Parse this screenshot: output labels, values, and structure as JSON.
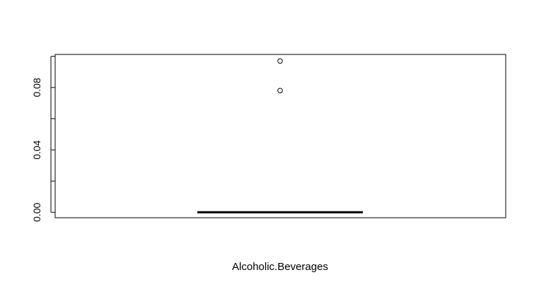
{
  "chart_data": {
    "type": "box",
    "xlabel": "Alcoholic.Beverages",
    "ylabel": "",
    "ylim": [
      -0.0035,
      0.1012
    ],
    "yticks": [
      "0.00",
      "0.04",
      "0.08"
    ],
    "box": {
      "min": 0.0,
      "q1": 0.0,
      "median": 0.0,
      "q3": 0.0,
      "max": 0.0,
      "outliers": [
        0.078,
        0.097
      ]
    },
    "grid": false,
    "legend": "none"
  }
}
